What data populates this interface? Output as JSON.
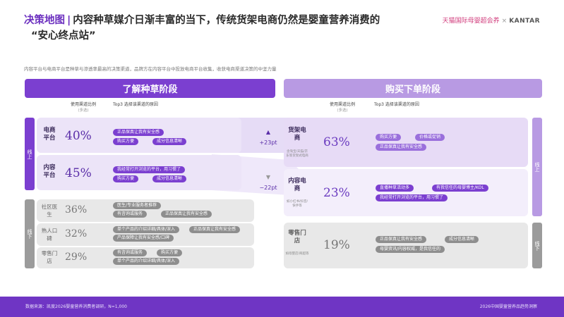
{
  "title": {
    "tag": "决策地图",
    "sep": "|",
    "line1": "内容种草媒介日渐丰富的当下，传统货架电商仍然是婴童营养消费的",
    "line2": "“安心终点站”"
  },
  "brand": {
    "left": "天猫国际母婴超会养",
    "x": "×",
    "right": "KANTAR"
  },
  "subtitle": "内容平台与电商平台是种草与渗透率最高的决策渠道，品牌方在内容平台中投放电商平台收集，收获电商渠道决策的中坚力量",
  "stages": {
    "left": "了解种草阶段",
    "right": "购买下单阶段"
  },
  "columns": {
    "usage": "使用渠道比例",
    "usage_sub": "(多选)",
    "reason": "Top3 选择该渠道的原因"
  },
  "side_labels": {
    "online_left": "线上",
    "offline_left": "线下",
    "online_right": "线上",
    "offline_right": "线下"
  },
  "left_rows": [
    {
      "name": "电商平台",
      "pct": "40%",
      "chips": [
        "正品保真让我有安全感",
        "购买方便",
        "成分信息清晰"
      ]
    },
    {
      "name": "内容平台",
      "pct": "45%",
      "chips": [
        "我经常打开浏览的平台，用习惯了",
        "购买方便",
        "成分信息清晰"
      ]
    },
    {
      "name": "社区医生",
      "pct": "36%",
      "chips": [
        "医生/专业服务者推荐",
        "有咨询或服务",
        "正品保真让我有安全感"
      ]
    },
    {
      "name": "熟人口碑",
      "pct": "32%",
      "chips": [
        "单个产品的介绍详细/具体/深入",
        "正品保真让我有安全感",
        "产品保障让我有安全感/口碑"
      ]
    },
    {
      "name": "零售门店",
      "pct": "29%",
      "chips": [
        "有咨询或服务",
        "购买方便",
        "单个产品的介绍详细/具体/深入"
      ]
    }
  ],
  "arrows": {
    "up": "+23pt",
    "down": "−22pt"
  },
  "right_rows": [
    {
      "name": "货架电商",
      "note": "含淘宝/天猫/京东等货架式电商",
      "pct": "63%",
      "chips": [
        "购买方便",
        "价格或促销",
        "正品保真让我有安全感"
      ]
    },
    {
      "name": "内容电商",
      "note": "如小红书/抖音/快手等",
      "pct": "23%",
      "chips": [
        "直播种草活动多",
        "有我信任的母婴博主/KOL",
        "我经常打开浏览的平台，用习惯了"
      ]
    },
    {
      "name": "零售门店",
      "note": "如母婴店/商超等",
      "pct": "19%",
      "chips": [
        "正品保真让我有安全感",
        "成分信息清晰",
        "母婴资讯/内容权威，是我信任的"
      ]
    }
  ],
  "footer": {
    "left": "数据来源：凯度2026婴童营养消费者调研，N=1,000",
    "right": "2026中国婴童营养品趋势洞察"
  },
  "colors": {
    "primary": "#7b3fd0",
    "light": "#b89ae3",
    "footer": "#6f35c4"
  }
}
